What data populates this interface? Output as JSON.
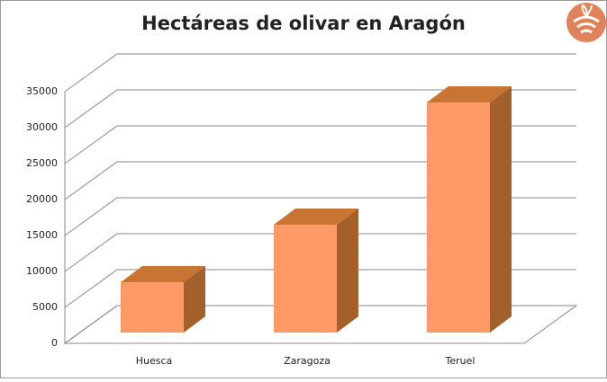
{
  "chart_data": {
    "type": "bar3d",
    "title": "Hectáreas de olivar en Aragón",
    "categories": [
      "Huesca",
      "Zaragoza",
      "Teruel"
    ],
    "values": [
      7000,
      15000,
      32000
    ],
    "color": "#ff9966",
    "top_color": "#c87533",
    "side_color": "#a3602b",
    "ylim": [
      0,
      35000
    ],
    "yticks": [
      0,
      5000,
      10000,
      15000,
      20000,
      25000,
      30000,
      35000
    ],
    "grid": true
  }
}
